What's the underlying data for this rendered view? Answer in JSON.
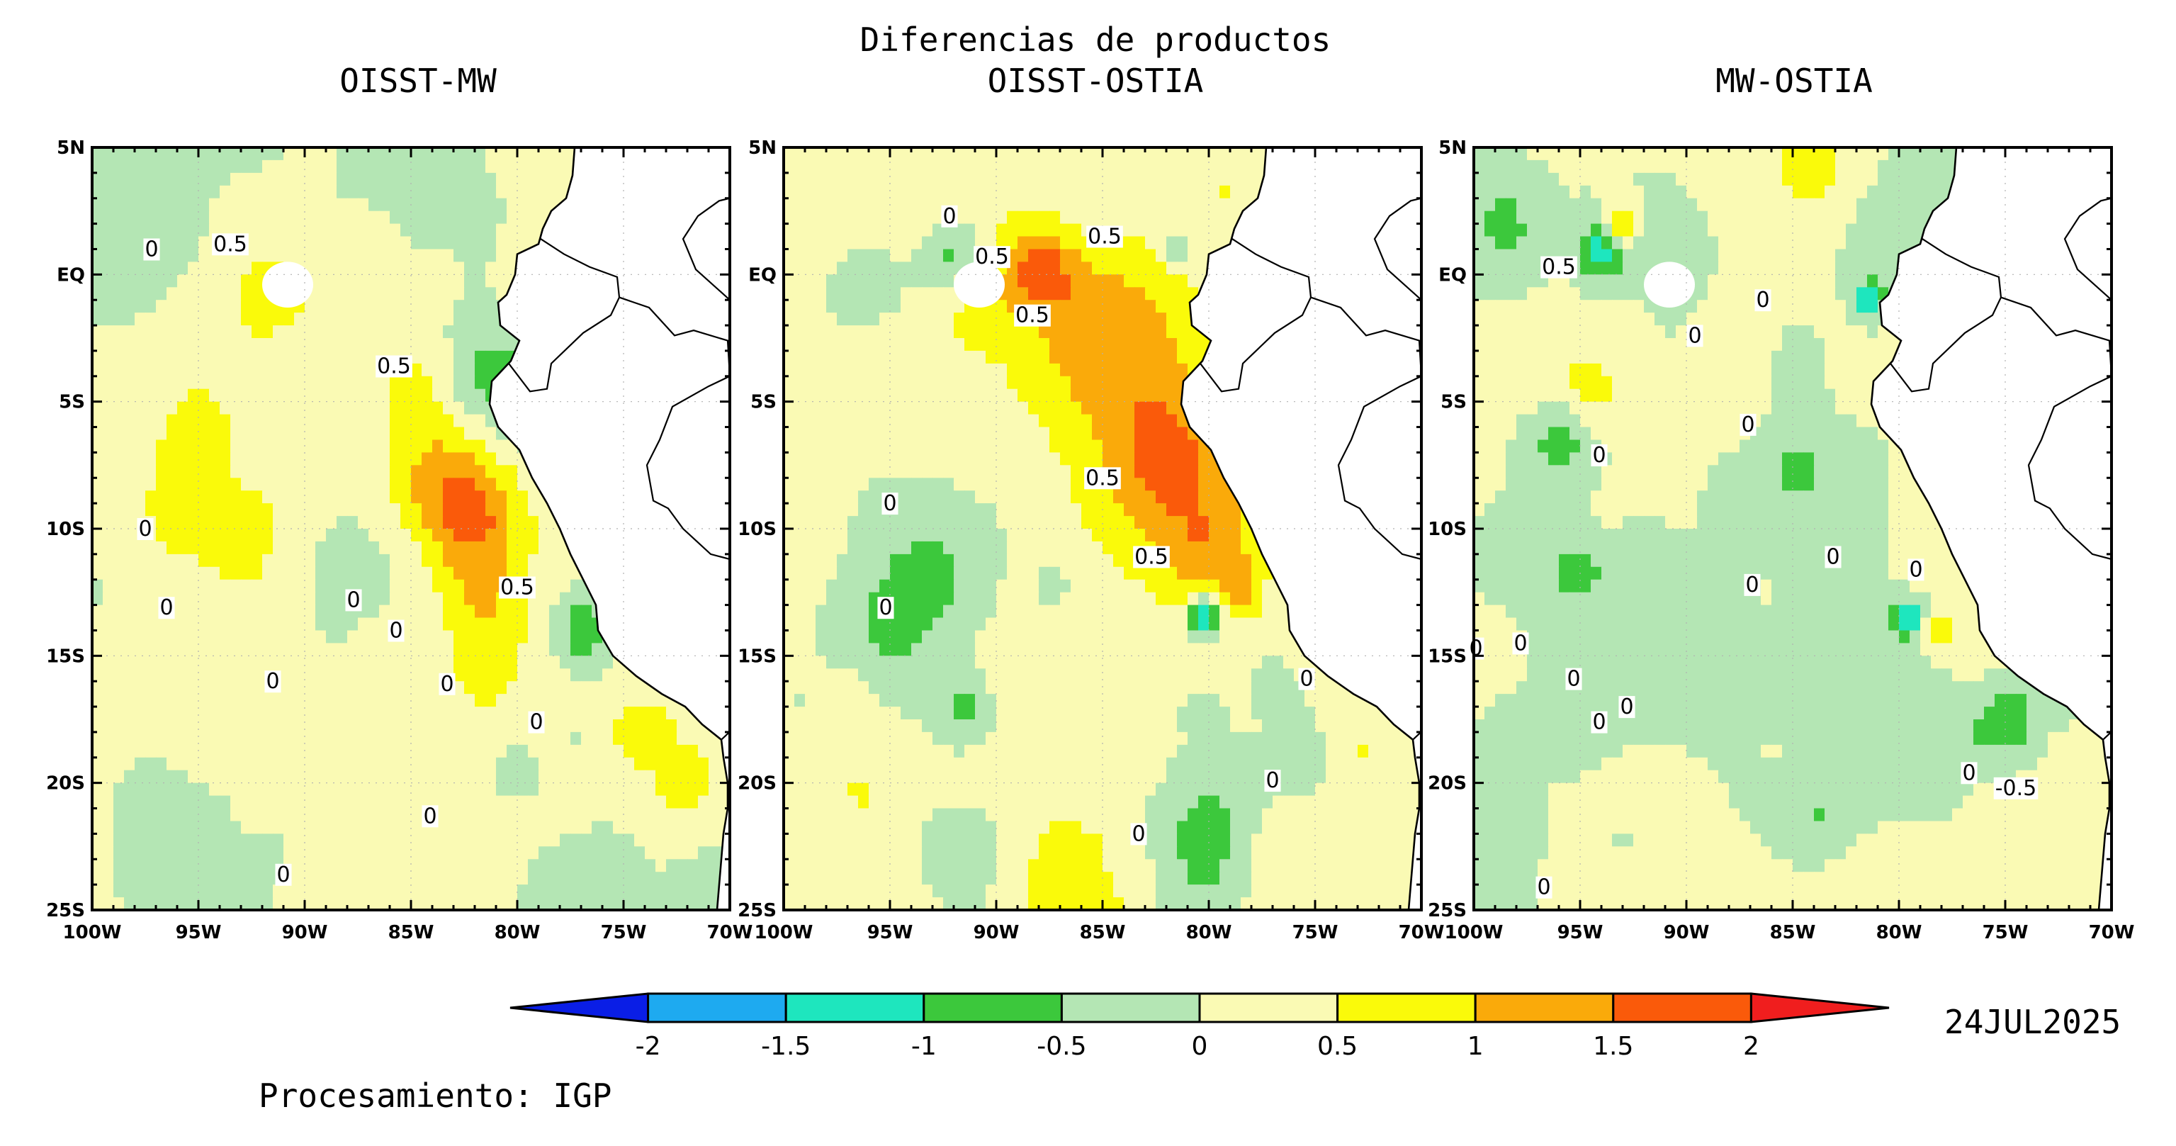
{
  "header": {
    "main_title": "Diferencias de productos",
    "date": "24JUL2025",
    "credit": "Procesamiento: IGP"
  },
  "palette": {
    "c_m2": "#0a1ee6",
    "c_m15": "#1eaaf0",
    "c_m1": "#1ee6be",
    "c_m05": "#3cc83c",
    "c_m0": "#b4e6b4",
    "c_p0": "#fafab4",
    "c_p05": "#fafa0a",
    "c_p1": "#faaa0a",
    "c_p15": "#fa5a0a",
    "c_p2": "#f01e1e",
    "land": "#ffffff",
    "line": "#000000"
  },
  "chart_data": {
    "type": "heatmap",
    "xlim": [
      -100,
      -70
    ],
    "ylim": [
      -25,
      5
    ],
    "x_ticks": [
      "100W",
      "95W",
      "90W",
      "85W",
      "80W",
      "75W",
      "70W"
    ],
    "y_ticks": [
      "5N",
      "EQ",
      "5S",
      "10S",
      "15S",
      "20S",
      "25S"
    ],
    "colorbar": {
      "levels": [
        "-2",
        "-1.5",
        "-1",
        "-0.5",
        "0",
        "0.5",
        "1",
        "1.5",
        "2"
      ]
    },
    "panels": [
      {
        "title": "OISST-MW",
        "contour_labels": [
          {
            "text": "0",
            "lon": -97.2,
            "lat": 1.0
          },
          {
            "text": "0.5",
            "lon": -93.5,
            "lat": 1.2
          },
          {
            "text": "0.5",
            "lon": -85.8,
            "lat": -3.6
          },
          {
            "text": "0",
            "lon": -97.5,
            "lat": -10.0
          },
          {
            "text": "0.5",
            "lon": -80.0,
            "lat": -12.3
          },
          {
            "text": "0",
            "lon": -96.5,
            "lat": -13.1
          },
          {
            "text": "0",
            "lon": -87.7,
            "lat": -12.8
          },
          {
            "text": "0",
            "lon": -85.7,
            "lat": -14.0
          },
          {
            "text": "0",
            "lon": -91.5,
            "lat": -16.0
          },
          {
            "text": "0",
            "lon": -83.3,
            "lat": -16.1
          },
          {
            "text": "0",
            "lon": -79.1,
            "lat": -17.6
          },
          {
            "text": "0",
            "lon": -84.1,
            "lat": -21.3
          },
          {
            "text": "0",
            "lon": -91.0,
            "lat": -23.6
          }
        ]
      },
      {
        "title": "OISST-OSTIA",
        "contour_labels": [
          {
            "text": "0",
            "lon": -92.2,
            "lat": 2.3
          },
          {
            "text": "0.5",
            "lon": -90.2,
            "lat": 0.7
          },
          {
            "text": "0.5",
            "lon": -84.9,
            "lat": 1.5
          },
          {
            "text": "0.5",
            "lon": -88.3,
            "lat": -1.6
          },
          {
            "text": "0",
            "lon": -95.0,
            "lat": -9.0
          },
          {
            "text": "0.5",
            "lon": -85.0,
            "lat": -8.0
          },
          {
            "text": "0.5",
            "lon": -82.7,
            "lat": -11.1
          },
          {
            "text": "0",
            "lon": -95.2,
            "lat": -13.1
          },
          {
            "text": "0",
            "lon": -75.4,
            "lat": -15.9
          },
          {
            "text": "0",
            "lon": -77.0,
            "lat": -19.9
          },
          {
            "text": "0",
            "lon": -83.3,
            "lat": -22.0
          }
        ]
      },
      {
        "title": "MW-OSTIA",
        "contour_labels": [
          {
            "text": "0.5",
            "lon": -96.0,
            "lat": 0.3
          },
          {
            "text": "0",
            "lon": -86.4,
            "lat": -1.0
          },
          {
            "text": "0",
            "lon": -89.6,
            "lat": -2.4
          },
          {
            "text": "0",
            "lon": -87.1,
            "lat": -5.9
          },
          {
            "text": "0",
            "lon": -94.1,
            "lat": -7.1
          },
          {
            "text": "0",
            "lon": -83.1,
            "lat": -11.1
          },
          {
            "text": "0",
            "lon": -86.9,
            "lat": -12.2
          },
          {
            "text": "0",
            "lon": -79.2,
            "lat": -11.6
          },
          {
            "text": "0",
            "lon": -99.9,
            "lat": -14.7
          },
          {
            "text": "0",
            "lon": -97.8,
            "lat": -14.5
          },
          {
            "text": "0",
            "lon": -95.3,
            "lat": -15.9
          },
          {
            "text": "0",
            "lon": -92.8,
            "lat": -17.0
          },
          {
            "text": "0",
            "lon": -94.1,
            "lat": -17.6
          },
          {
            "text": "0",
            "lon": -76.7,
            "lat": -19.6
          },
          {
            "text": "-0.5",
            "lon": -74.5,
            "lat": -20.2
          },
          {
            "text": "0",
            "lon": -96.7,
            "lat": -24.1
          }
        ]
      }
    ]
  }
}
